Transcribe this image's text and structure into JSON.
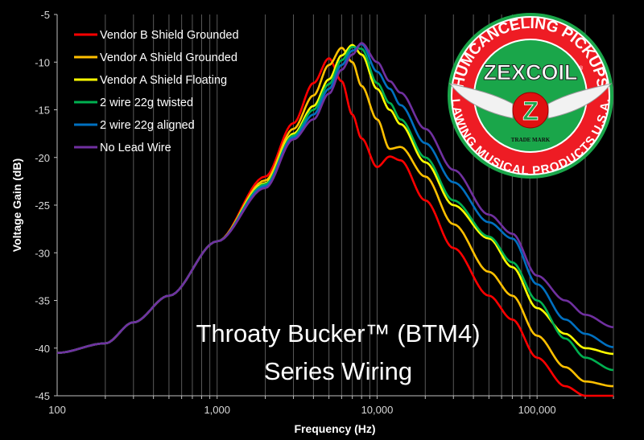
{
  "chart_data": {
    "type": "line",
    "xlabel": "Frequency (Hz)",
    "ylabel": "Voltage Gain (dB)",
    "x_scale": "log",
    "xlim": [
      100,
      300000
    ],
    "ylim": [
      -45,
      -5
    ],
    "x_tick_labels": [
      "100",
      "1,000",
      "10,000",
      "100,000"
    ],
    "y_tick_labels": [
      "-5",
      "-10",
      "-15",
      "-20",
      "-25",
      "-30",
      "-35",
      "-40",
      "-45"
    ],
    "grid": "vertical minor gridlines on",
    "legend_placement": "top-left",
    "annotation": [
      "Throaty Bucker™ (BTM4)",
      "Series Wiring"
    ],
    "x": [
      100,
      200,
      300,
      500,
      1000,
      2000,
      3000,
      4000,
      5000,
      6000,
      7000,
      8000,
      10000,
      12000,
      14000,
      20000,
      30000,
      50000,
      70000,
      100000,
      150000,
      200000,
      300000
    ],
    "series": [
      {
        "name": "Vendor B Shield Grounded",
        "color": "#ff0000",
        "values": [
          -40.5,
          -39.5,
          -37.3,
          -34.5,
          -28.8,
          -22.0,
          -16.4,
          -12.2,
          -9.6,
          -12.0,
          -15.5,
          -18.0,
          -21.0,
          -19.9,
          -20.3,
          -24.5,
          -29.5,
          -34.5,
          -37.0,
          -41.0,
          -44.0,
          -45.0,
          -45.0
        ]
      },
      {
        "name": "Vendor A Shield Grounded",
        "color": "#ffc000",
        "values": [
          -40.5,
          -39.5,
          -37.3,
          -34.5,
          -28.8,
          -22.4,
          -17.0,
          -13.5,
          -10.3,
          -8.5,
          -10.0,
          -12.5,
          -16.0,
          -19.1,
          -18.9,
          -22.0,
          -27.0,
          -32.0,
          -34.5,
          -38.7,
          -42.0,
          -43.5,
          -44.0
        ]
      },
      {
        "name": "Vendor A Shield Floating",
        "color": "#ffff00",
        "values": [
          -40.5,
          -39.5,
          -37.3,
          -34.5,
          -28.8,
          -22.7,
          -17.5,
          -14.6,
          -11.8,
          -9.3,
          -8.2,
          -9.2,
          -12.8,
          -15.0,
          -16.5,
          -20.5,
          -25.0,
          -28.5,
          -31.5,
          -35.8,
          -38.5,
          -40.0,
          -40.6
        ]
      },
      {
        "name": "2 wire 22g twisted",
        "color": "#00b050",
        "values": [
          -40.5,
          -39.5,
          -37.3,
          -34.5,
          -28.8,
          -22.8,
          -17.7,
          -15.0,
          -12.3,
          -9.8,
          -8.4,
          -8.6,
          -12.2,
          -14.3,
          -16.0,
          -20.0,
          -24.5,
          -28.3,
          -31.0,
          -35.0,
          -39.0,
          -41.0,
          -42.3
        ]
      },
      {
        "name": "2 wire 22g aligned",
        "color": "#0070c0",
        "values": [
          -40.5,
          -39.5,
          -37.3,
          -34.5,
          -28.8,
          -23.0,
          -17.9,
          -15.5,
          -12.8,
          -10.3,
          -8.8,
          -8.1,
          -11.0,
          -12.8,
          -14.5,
          -18.5,
          -22.6,
          -26.8,
          -28.5,
          -33.3,
          -37.0,
          -38.5,
          -39.9
        ]
      },
      {
        "name": "No Lead Wire",
        "color": "#7030a0",
        "values": [
          -40.5,
          -39.5,
          -37.3,
          -34.5,
          -28.8,
          -23.2,
          -18.1,
          -16.0,
          -13.3,
          -10.8,
          -9.2,
          -8.0,
          -10.0,
          -12.0,
          -13.2,
          -17.0,
          -21.3,
          -26.0,
          -28.0,
          -32.4,
          -35.0,
          -36.5,
          -37.8
        ]
      }
    ]
  },
  "logo": {
    "top_text": "HUMCANCELING PICKUPS",
    "brand": "ZEXCOIL",
    "registered": "®",
    "badge_letter": "Z",
    "trademark": "TRADE MARK",
    "bottom_text": "LAWING MUSICAL PRODUCTS U.S.A.",
    "colors": {
      "red": "#ee1c24",
      "green": "#1aa64a"
    }
  }
}
